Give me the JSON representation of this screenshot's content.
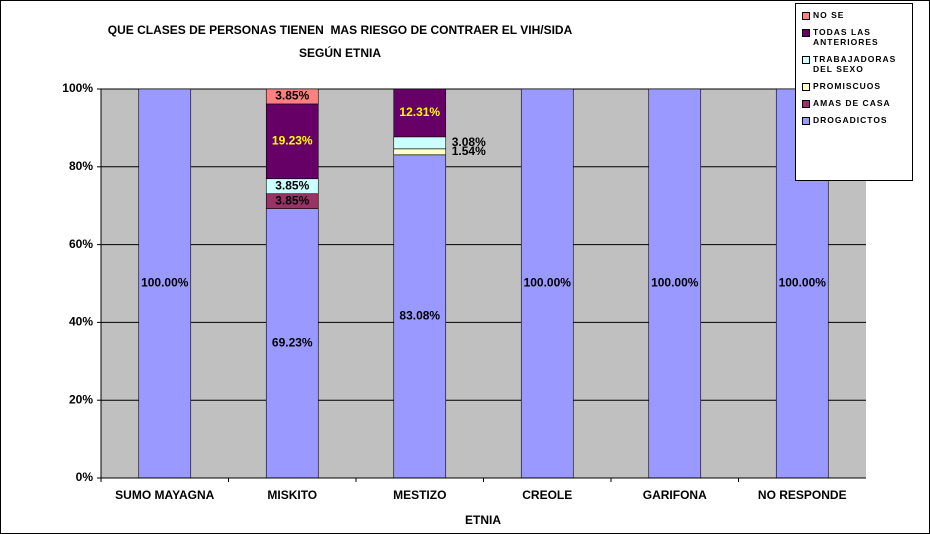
{
  "chart_data": {
    "type": "stacked_bar",
    "title": [
      "QUE CLASES DE PERSONAS TIENEN  MAS RIESGO DE CONTRAER EL VIH/SIDA",
      "SEGÚN ETNIA"
    ],
    "x_label": "ETNIA",
    "categories": [
      "SUMO MAYAGNA",
      "MISKITO",
      "MESTIZO",
      "CREOLE",
      "GARIFONA",
      "NO RESPONDE"
    ],
    "ylim": [
      0,
      100
    ],
    "yticks": [
      {
        "value": 0,
        "label": "0%"
      },
      {
        "value": 20,
        "label": "20%"
      },
      {
        "value": 40,
        "label": "40%"
      },
      {
        "value": 60,
        "label": "60%"
      },
      {
        "value": 80,
        "label": "80%"
      },
      {
        "value": 100,
        "label": "100%"
      }
    ],
    "grid": true,
    "legend": "top-right",
    "series": [
      {
        "name": "DROGADICTOS",
        "color": "#9999ff",
        "label_color": "#000000",
        "values": [
          100,
          69.23,
          83.08,
          100,
          100,
          100
        ],
        "value_labels": [
          "100.00%",
          "69.23%",
          "83.08%",
          "100.00%",
          "100.00%",
          "100.00%"
        ]
      },
      {
        "name": "AMAS DE CASA",
        "color": "#993366",
        "label_color": "#000000",
        "values": [
          0,
          3.85,
          0,
          0,
          0,
          0
        ],
        "value_labels": [
          null,
          "3.85%",
          null,
          null,
          null,
          null
        ]
      },
      {
        "name": "PROMISCUOS",
        "color": "#ffffcc",
        "label_color": "#000000",
        "values": [
          0,
          0,
          1.54,
          0,
          0,
          0
        ],
        "value_labels": [
          null,
          null,
          "1.54%",
          null,
          null,
          null
        ]
      },
      {
        "name": "TRABAJADORAS DEL SEXO",
        "color": "#ccffff",
        "label_color": "#000000",
        "values": [
          0,
          3.85,
          3.08,
          0,
          0,
          0
        ],
        "value_labels": [
          null,
          "3.85%",
          "3.08%",
          null,
          null,
          null
        ]
      },
      {
        "name": "TODAS LAS ANTERIORES",
        "color": "#660066",
        "label_color": "#ffff00",
        "values": [
          0,
          19.23,
          12.31,
          0,
          0,
          0
        ],
        "value_labels": [
          null,
          "19.23%",
          "12.31%",
          null,
          null,
          null
        ]
      },
      {
        "name": "NO SE",
        "color": "#ff8080",
        "label_color": "#000000",
        "values": [
          0,
          3.85,
          0,
          0,
          0,
          0
        ],
        "value_labels": [
          null,
          "3.85%",
          null,
          null,
          null,
          null
        ]
      }
    ]
  }
}
